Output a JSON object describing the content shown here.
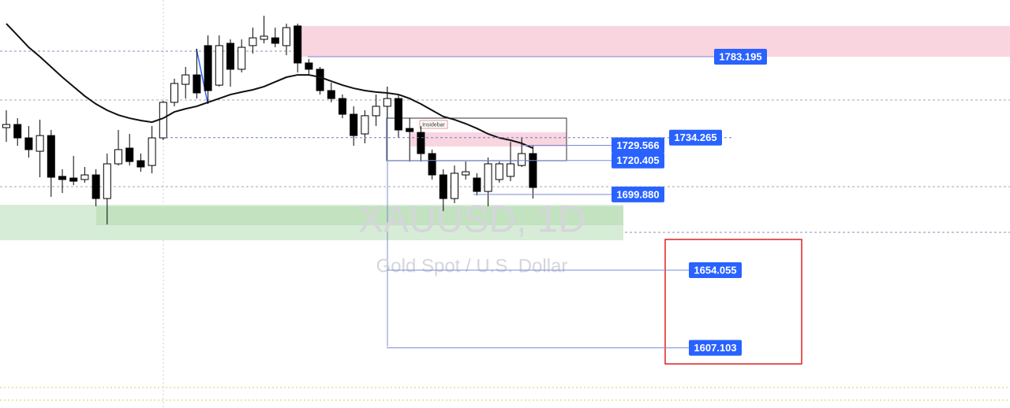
{
  "chart_data": {
    "type": "candlestick",
    "title": "XAUUSD, 1D",
    "subtitle": "Gold Spot / U.S. Dollar",
    "annotation": "Insidebar",
    "categories": [
      null,
      null,
      null,
      null,
      null,
      null,
      null,
      null,
      null,
      null,
      null,
      null,
      null,
      null,
      null,
      null,
      null,
      null,
      null,
      null,
      null,
      null,
      null,
      null,
      null,
      null,
      null,
      null,
      null,
      null,
      null,
      null,
      null,
      null,
      null,
      null,
      null,
      null,
      null,
      null,
      null,
      null,
      null,
      null,
      null,
      null,
      null,
      null
    ],
    "open": [
      1740.3,
      1742.2,
      1734.1,
      1726.0,
      1735.5,
      1710.8,
      1709.8,
      1708.9,
      1711.7,
      1697.4,
      1718.4,
      1727.9,
      1720.3,
      1717.4,
      1734.1,
      1755.6,
      1766.5,
      1772.2,
      1789.9,
      1766.0,
      1791.3,
      1775.6,
      1789.9,
      1793.7,
      1794.6,
      1789.9,
      1801.8,
      1779.4,
      1775.6,
      1762.7,
      1757.9,
      1748.4,
      1736.5,
      1747.5,
      1753.2,
      1757.9,
      1739.8,
      1737.4,
      1724.6,
      1711.7,
      1697.4,
      1711.7,
      1709.8,
      1701.7,
      1708.9,
      1710.8,
      1717.4,
      1724.6
    ],
    "high": [
      1750.8,
      1746.0,
      1741.3,
      1745.1,
      1738.9,
      1715.1,
      1723.2,
      1716.5,
      1715.1,
      1724.6,
      1738.9,
      1736.5,
      1724.6,
      1741.3,
      1756.5,
      1769.9,
      1777.0,
      1788.0,
      1796.1,
      1796.1,
      1793.7,
      1793.7,
      1800.8,
      1808.0,
      1800.8,
      1803.2,
      1803.2,
      1781.8,
      1777.0,
      1767.5,
      1760.3,
      1753.2,
      1750.8,
      1760.3,
      1765.1,
      1760.3,
      1746.0,
      1741.3,
      1727.0,
      1715.1,
      1717.4,
      1719.8,
      1712.7,
      1722.2,
      1719.8,
      1731.7,
      1734.1,
      1729.3
    ],
    "low": [
      1731.7,
      1729.3,
      1722.2,
      1710.3,
      1698.4,
      1700.8,
      1705.5,
      1707.0,
      1692.7,
      1681.7,
      1717.4,
      1717.4,
      1713.6,
      1712.7,
      1732.7,
      1753.2,
      1757.9,
      1757.9,
      1754.6,
      1765.1,
      1765.1,
      1773.7,
      1785.1,
      1791.3,
      1788.9,
      1784.1,
      1773.7,
      1772.2,
      1760.3,
      1755.6,
      1746.0,
      1729.3,
      1730.8,
      1741.3,
      1746.0,
      1734.1,
      1719.8,
      1719.8,
      1708.9,
      1689.8,
      1694.6,
      1708.9,
      1699.3,
      1692.7,
      1707.0,
      1707.9,
      1716.5,
      1697.4
    ],
    "close": [
      1742.2,
      1734.1,
      1727.0,
      1735.5,
      1710.3,
      1708.9,
      1707.9,
      1711.7,
      1697.4,
      1718.4,
      1727.0,
      1719.8,
      1716.5,
      1734.1,
      1755.6,
      1767.0,
      1772.2,
      1761.3,
      1762.7,
      1789.9,
      1775.6,
      1788.9,
      1794.6,
      1795.6,
      1791.3,
      1800.8,
      1779.4,
      1775.6,
      1762.7,
      1757.9,
      1748.4,
      1735.5,
      1747.5,
      1753.2,
      1757.9,
      1738.9,
      1737.9,
      1724.6,
      1711.7,
      1697.4,
      1712.7,
      1713.6,
      1701.7,
      1718.4,
      1718.4,
      1718.4,
      1724.6,
      1704.1
    ],
    "moving_average": {
      "color": "#111111",
      "values": [
        1803.2,
        1796.1,
        1788.9,
        1783.2,
        1777.0,
        1770.8,
        1765.1,
        1759.4,
        1754.6,
        1750.8,
        1747.9,
        1746.0,
        1744.6,
        1743.6,
        1746.0,
        1749.8,
        1751.7,
        1753.2,
        1755.6,
        1757.9,
        1760.3,
        1761.8,
        1763.2,
        1765.1,
        1768.0,
        1770.8,
        1772.2,
        1772.2,
        1770.8,
        1768.4,
        1766.0,
        1764.1,
        1762.7,
        1761.8,
        1761.3,
        1760.3,
        1757.9,
        1754.6,
        1750.8,
        1747.0,
        1745.1,
        1742.7,
        1739.8,
        1736.5,
        1734.1,
        1732.7,
        1730.8,
        1727.9
      ]
    },
    "price_labels": [
      1783.195,
      1734.265,
      1729.566,
      1720.405,
      {
        "value": 1699.88,
        "label": "1699.880"
      },
      1654.055,
      1607.103
    ],
    "label_color": "#2962ff",
    "ylim": [
      1570.7,
      1817.5
    ]
  }
}
